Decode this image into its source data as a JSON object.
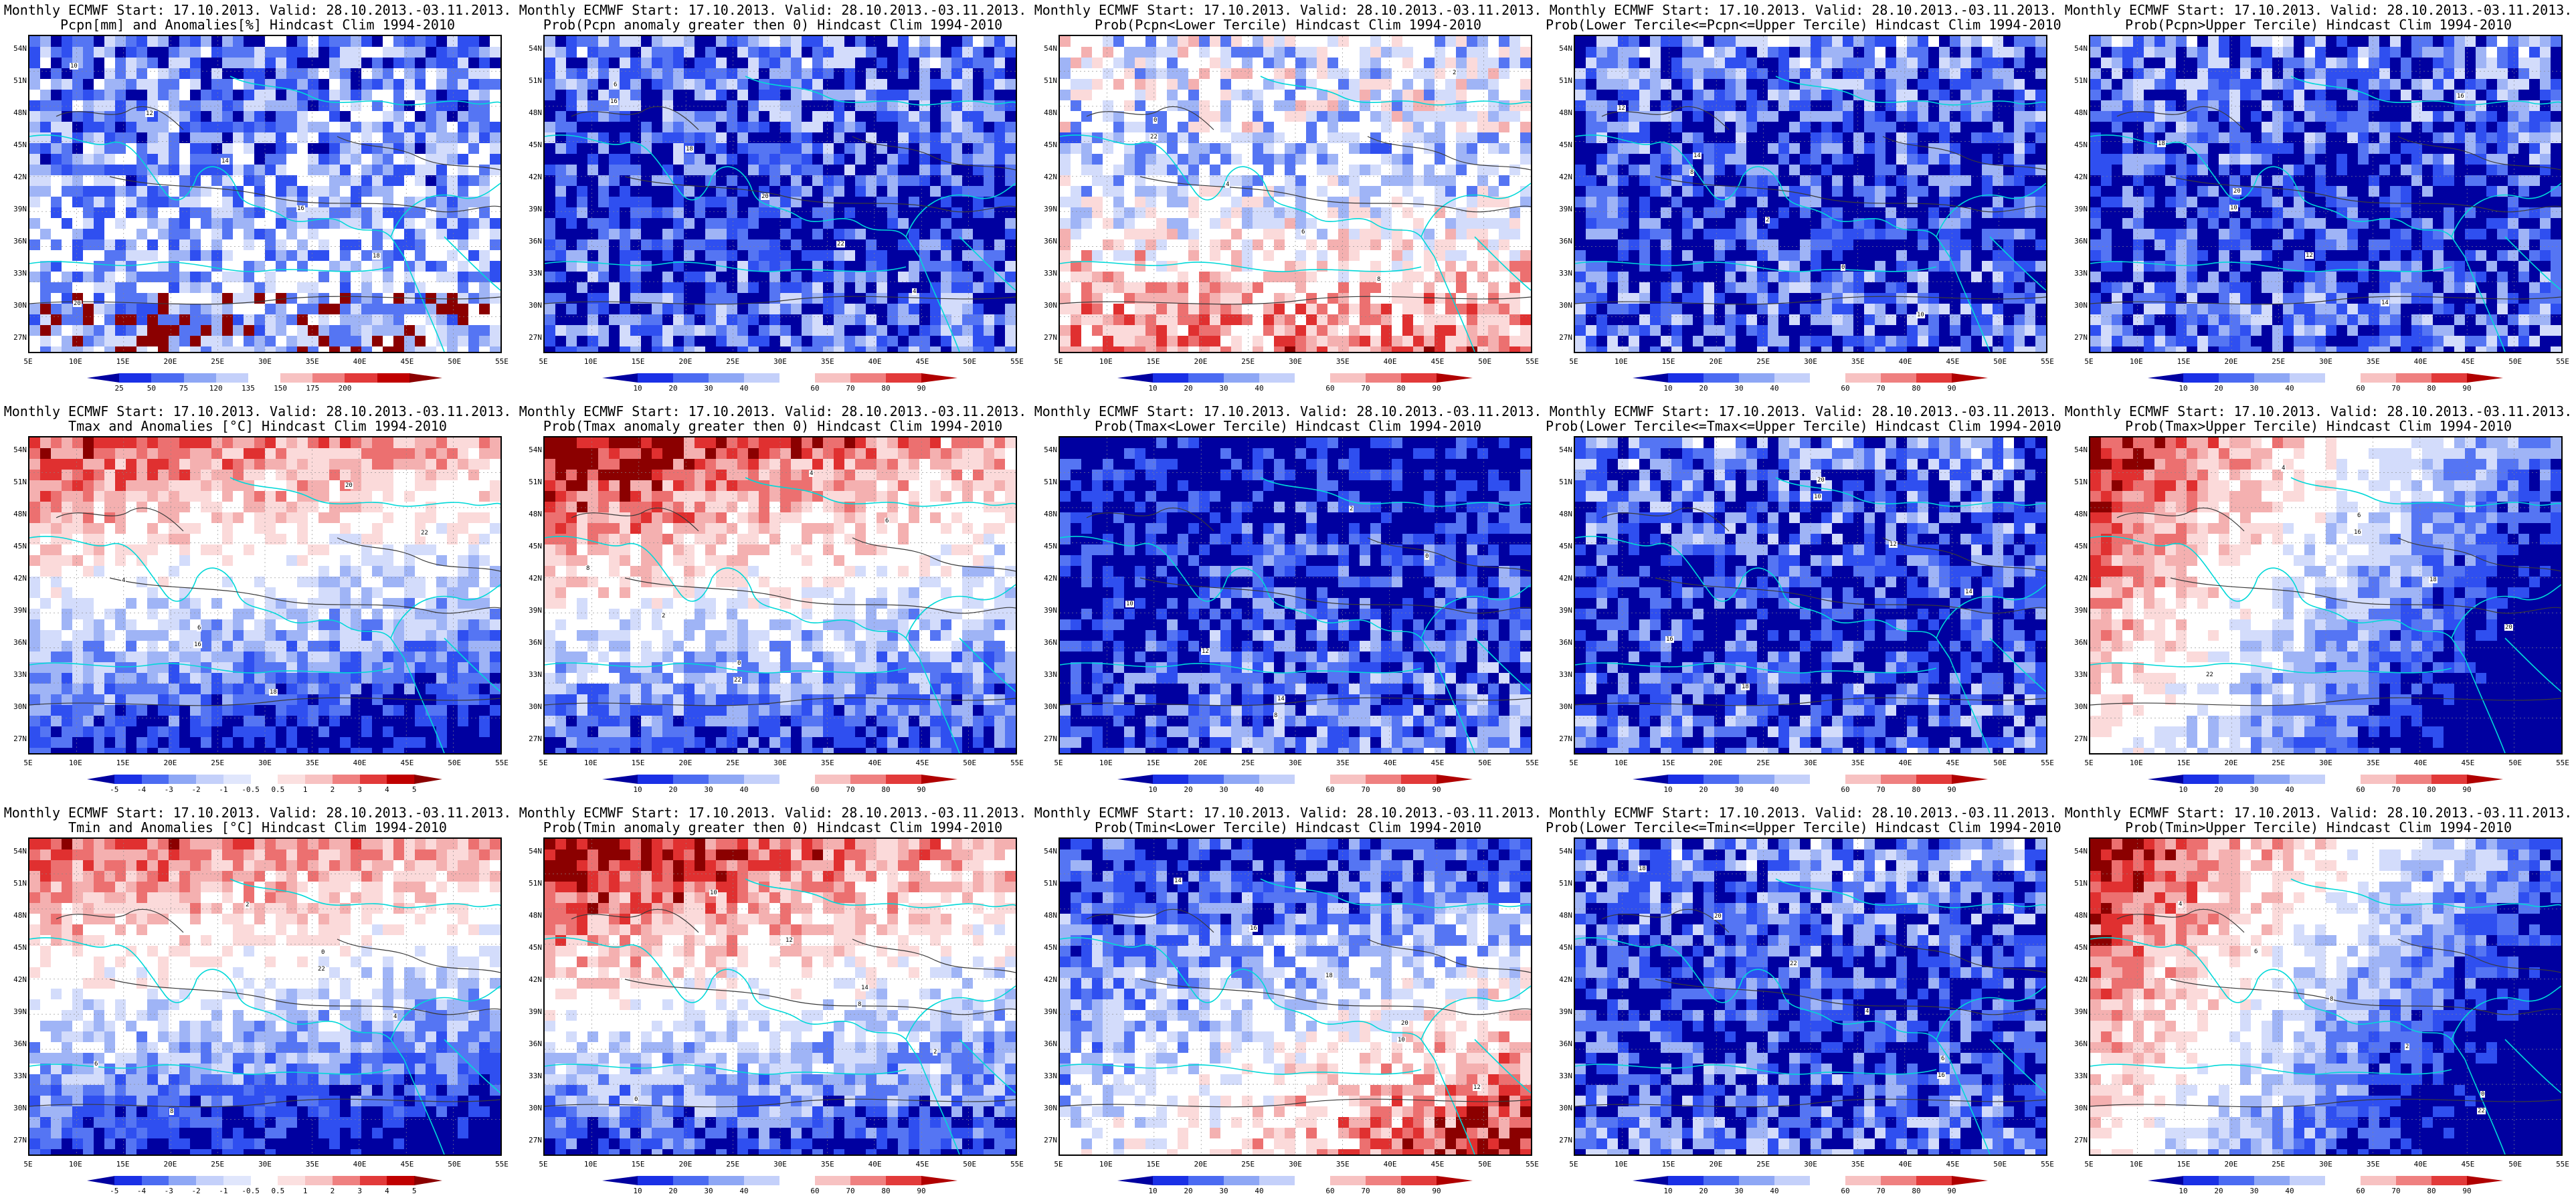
{
  "panels": [
    {
      "line1": "Monthly ECMWF Start: 17.10.2013. Valid: 28.10.2013.-03.11.2013.",
      "line2": "Pcpn[mm] and Anomalies[%] Hindcast Clim 1994-2010",
      "scheme": "anom",
      "cbar": "precip"
    },
    {
      "line1": "Monthly ECMWF Start: 17.10.2013. Valid: 28.10.2013.-03.11.2013.",
      "line2": "Prob(Pcpn anomaly greater then 0) Hindcast Clim 1994-2010",
      "scheme": "blue",
      "cbar": "prob"
    },
    {
      "line1": "Monthly ECMWF Start: 17.10.2013. Valid: 28.10.2013.-03.11.2013.",
      "line2": "Prob(Pcpn<Lower Tercile) Hindcast Clim 1994-2010",
      "scheme": "red-south",
      "cbar": "prob"
    },
    {
      "line1": "Monthly ECMWF Start: 17.10.2013. Valid: 28.10.2013.-03.11.2013.",
      "line2": "Prob(Lower Tercile<=Pcpn<=Upper Tercile) Hindcast Clim 1994-2010",
      "scheme": "blue",
      "cbar": "prob"
    },
    {
      "line1": "Monthly ECMWF Start: 17.10.2013. Valid: 28.10.2013.-03.11.2013.",
      "line2": "Prob(Pcpn>Upper Tercile) Hindcast Clim 1994-2010",
      "scheme": "blue",
      "cbar": "prob"
    },
    {
      "line1": "Monthly ECMWF Start: 17.10.2013. Valid: 28.10.2013.-03.11.2013.",
      "line2": "Tmax and Anomalies [°C] Hindcast Clim 1994-2010",
      "scheme": "red-north",
      "cbar": "temp"
    },
    {
      "line1": "Monthly ECMWF Start: 17.10.2013. Valid: 28.10.2013.-03.11.2013.",
      "line2": "Prob(Tmax anomaly greater then 0) Hindcast Clim 1994-2010",
      "scheme": "darkred-north",
      "cbar": "prob"
    },
    {
      "line1": "Monthly ECMWF Start: 17.10.2013. Valid: 28.10.2013.-03.11.2013.",
      "line2": "Prob(Tmax<Lower Tercile) Hindcast Clim 1994-2010",
      "scheme": "blue-deep",
      "cbar": "prob"
    },
    {
      "line1": "Monthly ECMWF Start: 17.10.2013. Valid: 28.10.2013.-03.11.2013.",
      "line2": "Prob(Lower Tercile<=Tmax<=Upper Tercile) Hindcast Clim 1994-2010",
      "scheme": "blue",
      "cbar": "prob"
    },
    {
      "line1": "Monthly ECMWF Start: 17.10.2013. Valid: 28.10.2013.-03.11.2013.",
      "line2": "Prob(Tmax>Upper Tercile) Hindcast Clim 1994-2010",
      "scheme": "red-west",
      "cbar": "prob"
    },
    {
      "line1": "Monthly ECMWF Start: 17.10.2013. Valid: 28.10.2013.-03.11.2013.",
      "line2": "Tmin and Anomalies [°C] Hindcast Clim 1994-2010",
      "scheme": "red-north",
      "cbar": "temp"
    },
    {
      "line1": "Monthly ECMWF Start: 17.10.2013. Valid: 28.10.2013.-03.11.2013.",
      "line2": "Prob(Tmin anomaly greater then 0) Hindcast Clim 1994-2010",
      "scheme": "darkred-north",
      "cbar": "prob"
    },
    {
      "line1": "Monthly ECMWF Start: 17.10.2013. Valid: 28.10.2013.-03.11.2013.",
      "line2": "Prob(Tmin<Lower Tercile) Hindcast Clim 1994-2010",
      "scheme": "red-southeast",
      "cbar": "prob"
    },
    {
      "line1": "Monthly ECMWF Start: 17.10.2013. Valid: 28.10.2013.-03.11.2013.",
      "line2": "Prob(Lower Tercile<=Tmin<=Upper Tercile) Hindcast Clim 1994-2010",
      "scheme": "blue",
      "cbar": "prob"
    },
    {
      "line1": "Monthly ECMWF Start: 17.10.2013. Valid: 28.10.2013.-03.11.2013.",
      "line2": "Prob(Tmin>Upper Tercile) Hindcast Clim 1994-2010",
      "scheme": "red-west",
      "cbar": "prob"
    }
  ],
  "lat_labels": [
    "54N",
    "51N",
    "48N",
    "45N",
    "42N",
    "39N",
    "36N",
    "33N",
    "30N",
    "27N"
  ],
  "lon_labels": [
    "5E",
    "10E",
    "15E",
    "20E",
    "25E",
    "30E",
    "35E",
    "40E",
    "45E",
    "50E",
    "55E"
  ],
  "colorbars": {
    "precip": {
      "labels": [
        "25",
        "50",
        "75",
        "120",
        "135",
        "150",
        "175",
        "200"
      ],
      "colors": [
        "#0000a0",
        "#1a30e6",
        "#4b6bf2",
        "#8ea7f5",
        "#c4d0fa",
        "#ffffff",
        "#f7c2c2",
        "#ef8080",
        "#e23a3a",
        "#c00000",
        "#8b0000"
      ]
    },
    "prob": {
      "labels": [
        "10",
        "20",
        "30",
        "40",
        "60",
        "70",
        "80",
        "90"
      ],
      "colors": [
        "#0000a0",
        "#1a30e6",
        "#4b6bf2",
        "#8ea7f5",
        "#c4d0fa",
        "#ffffff",
        "#f7c2c2",
        "#ef8080",
        "#e23a3a",
        "#b00000"
      ]
    },
    "temp": {
      "labels": [
        "-5",
        "-4",
        "-3",
        "-2",
        "-1",
        "-0.5",
        "0.5",
        "1",
        "2",
        "3",
        "4",
        "5"
      ],
      "colors": [
        "#0000a0",
        "#1a30e6",
        "#4b6bf2",
        "#8ea7f5",
        "#c4d0fa",
        "#e0e6fc",
        "#ffffff",
        "#fbe0e0",
        "#f7c2c2",
        "#ef8080",
        "#e23a3a",
        "#c00000",
        "#8b0000"
      ]
    }
  },
  "colors": {
    "land_contour": "#3a3a3a",
    "coast": "#00d8d8",
    "blue_dark": "#0000a0",
    "blue_mid": "#2f4ff0",
    "blue_light": "#9fb4f6",
    "red_dark": "#8b0000",
    "red_mid": "#e03030",
    "red_light": "#f4b0b0"
  },
  "contour_tags": [
    "10",
    "12",
    "14",
    "16",
    "18",
    "20",
    "22",
    "4",
    "6",
    "8",
    "2",
    "0"
  ]
}
